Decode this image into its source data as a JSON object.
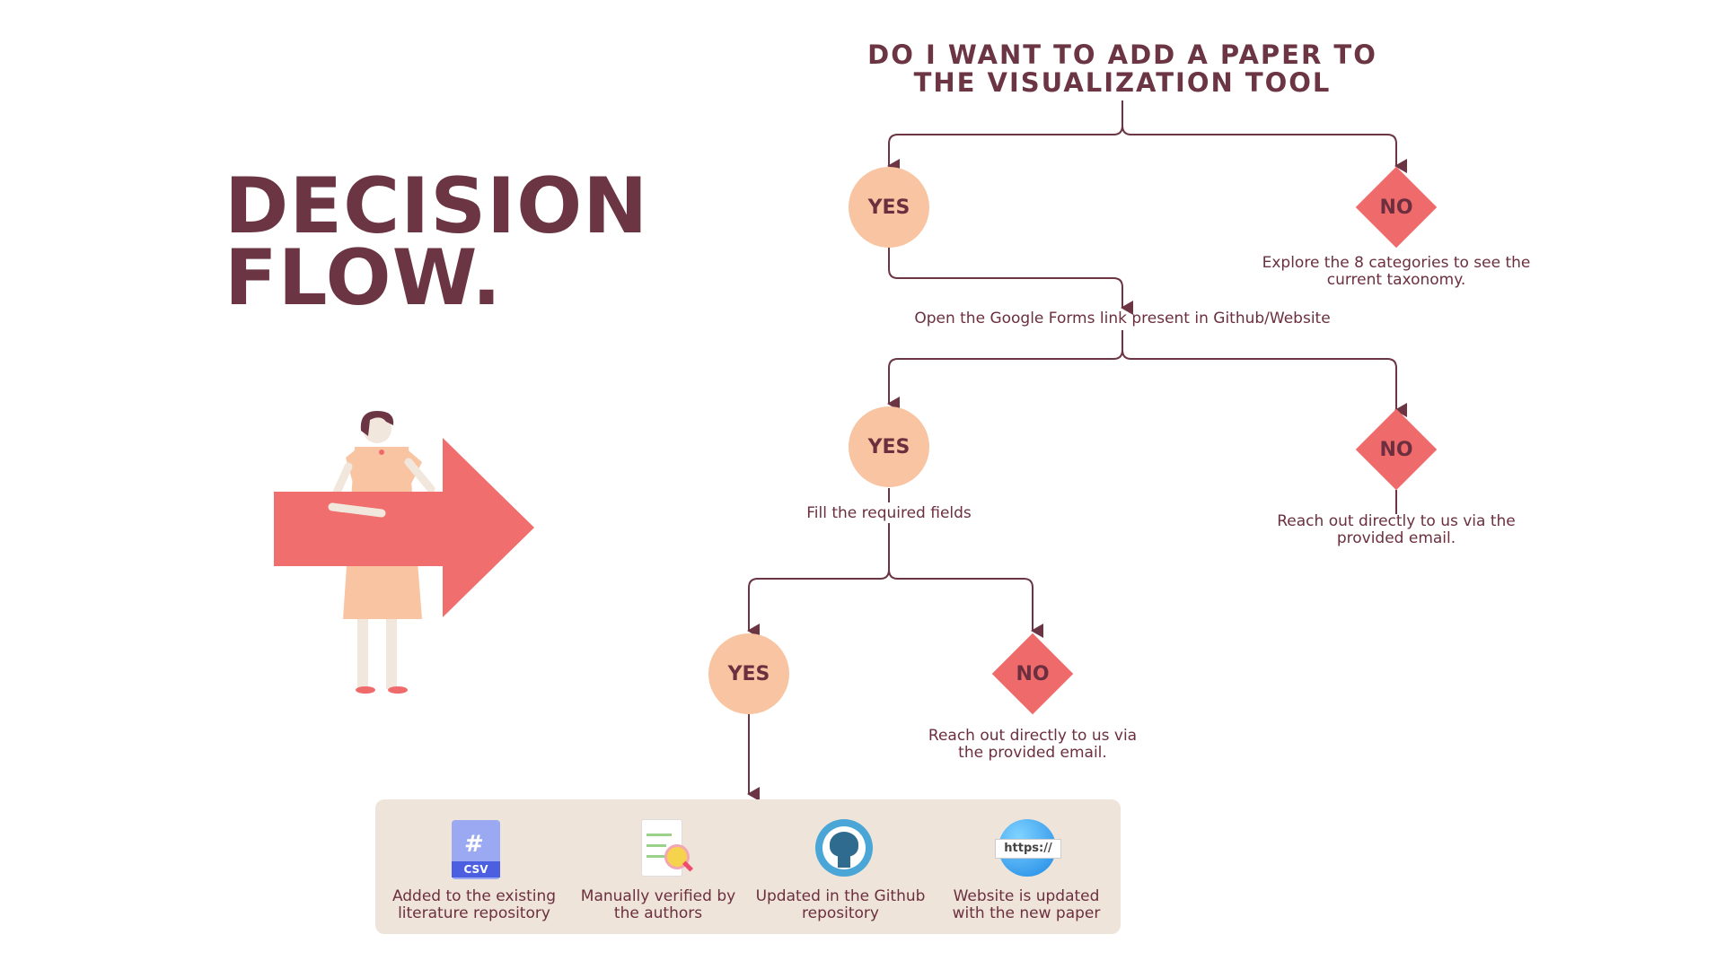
{
  "diagram": {
    "title": "DO I WANT TO ADD A PAPER TO THE VISUALIZATION TOOL",
    "side_title_line1": "DECISION",
    "side_title_line2": "FLOW.",
    "level1": {
      "yes_label": "YES",
      "no_label": "NO",
      "no_note": "Explore the 8 categories to see the current taxonomy.",
      "yes_note": "Open the Google Forms link present in Github/Website"
    },
    "level2": {
      "yes_label": "YES",
      "no_label": "NO",
      "yes_note": "Fill the required fields",
      "no_note": "Reach out directly to us via the provided email."
    },
    "level3": {
      "yes_label": "YES",
      "no_label": "NO",
      "no_note": "Reach out directly to us via the provided email."
    },
    "process_steps": [
      {
        "label": "Added to the existing literature repository",
        "icon": "csv-file-icon",
        "icon_text": "CSV"
      },
      {
        "label": "Manually verified by the authors",
        "icon": "verified-document-icon"
      },
      {
        "label": "Updated in the Github repository",
        "icon": "github-icon"
      },
      {
        "label": "Website is updated with the new paper",
        "icon": "web-globe-icon",
        "icon_text": "https://"
      }
    ]
  },
  "colors": {
    "text": "#6b2f3f",
    "yes_fill": "#f9c4a1",
    "no_fill": "#ef6b6b",
    "process_bg": "#efe4da",
    "arrow": "#f06e6e"
  }
}
